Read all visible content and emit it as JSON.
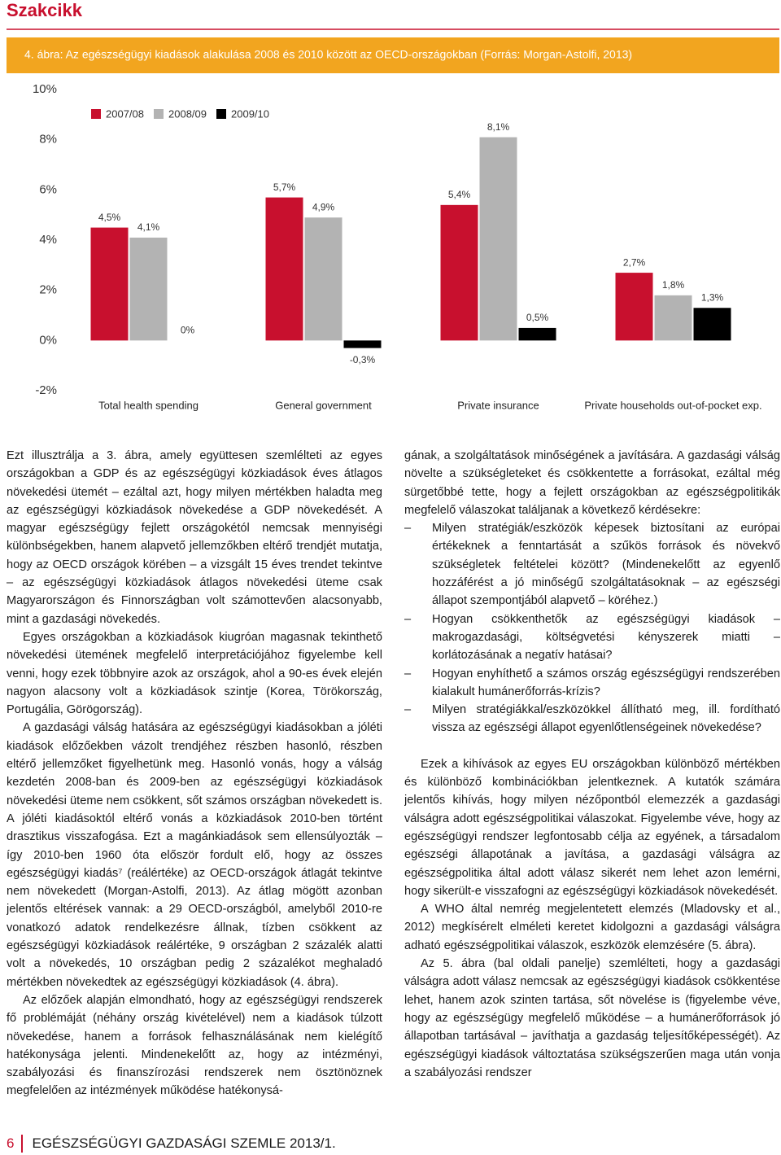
{
  "header": {
    "section": "Szakcikk"
  },
  "chart_data": {
    "type": "bar",
    "title": "4. ábra: Az egészségügyi kiadások alakulása 2008 és 2010 között az OECD-országokban (Forrás: Morgan-Astolfi, 2013)",
    "categories": [
      "Total health spending",
      "General government",
      "Private insurance",
      "Private households out-of-pocket exp."
    ],
    "series": [
      {
        "name": "2007/08",
        "color": "#c8102e",
        "values": [
          4.5,
          5.7,
          5.4,
          2.7
        ],
        "value_labels": [
          "4,5%",
          "5,7%",
          "5,4%",
          "2,7%"
        ]
      },
      {
        "name": "2008/09",
        "color": "#b3b3b3",
        "values": [
          4.1,
          4.9,
          8.1,
          1.8
        ],
        "value_labels": [
          "4,1%",
          "4,9%",
          "8,1%",
          "1,8%"
        ]
      },
      {
        "name": "2009/10",
        "color": "#000000",
        "values": [
          0,
          -0.3,
          0.5,
          1.3
        ],
        "value_labels": [
          "0%",
          "-0,3%",
          "0,5%",
          "1,3%"
        ]
      }
    ],
    "ylim": [
      -2,
      10
    ],
    "yticks": [
      {
        "value": -2,
        "label": "-2%"
      },
      {
        "value": 0,
        "label": "0%"
      },
      {
        "value": 2,
        "label": "2%"
      },
      {
        "value": 4,
        "label": "4%"
      },
      {
        "value": 6,
        "label": "6%"
      },
      {
        "value": 8,
        "label": "8%"
      },
      {
        "value": 10,
        "label": "10%"
      }
    ],
    "grid": false,
    "legend": "top-left"
  },
  "left_column": {
    "paragraphs": [
      "Ezt illusztrálja a 3. ábra, amely együttesen szemlélteti az egyes országokban a GDP és az egészségügyi közkiadások éves átlagos növekedési ütemét – ezáltal azt, hogy milyen mértékben haladta meg az egészségügyi közkiadások növekedése a GDP növekedését. A magyar egészségügy fejlett országokétól nemcsak mennyiségi különbségekben, hanem alapvető jellemzőkben eltérő trendjét mutatja, hogy az OECD országok körében – a vizsgált 15 éves trendet tekintve – az egészségügyi közkiadások átlagos növekedési üteme csak Magyarországon és Finnországban volt számottevően alacsonyabb, mint a gazdasági növekedés.",
      "Egyes országokban a közkiadások kiugróan magasnak tekinthető növekedési ütemének megfelelő interpretációjához figyelembe kell venni, hogy ezek többnyire azok az országok, ahol a 90-es évek elején nagyon alacsony volt a közkiadások szintje (Korea, Törökország, Portugália, Görögország).",
      "A gazdasági válság hatására az egészségügyi kiadásokban a jóléti kiadások előzőekben vázolt trendjéhez részben hasonló, részben eltérő jellemzőket figyelhetünk meg. Hasonló vonás, hogy a válság kezdetén 2008-ban és 2009-ben az egészségügyi közkiadások növekedési üteme nem csökkent, sőt számos országban növekedett is. A jóléti kiadásoktól eltérő vonás a közkiadások 2010-ben történt drasztikus visszafogása. Ezt a magánkiadások sem ellensúlyozták – így 2010-ben 1960 óta először fordult elő, hogy az összes egészségügyi kiadás⁷ (reálértéke) az OECD-országok átlagát tekintve nem növekedett (Morgan-Astolfi, 2013). Az átlag mögött azonban jelentős eltérések vannak: a 29 OECD-országból, amelyből 2010-re vonatkozó adatok rendelkezésre állnak, tízben csökkent az egészségügyi közkiadások reálértéke, 9 országban 2 százalék alatti volt a növekedés, 10 országban pedig 2 százalékot meghaladó mértékben növekedtek az egészségügyi közkiadások (4. ábra).",
      "Az előzőek alapján elmondható, hogy az egészségügyi rendszerek fő problémáját (néhány ország kivételével) nem a kiadások túlzott növekedése, hanem a források felhasználásának nem kielégítő hatékonysága jelenti. Mindenekelőtt az, hogy az intézményi, szabályozási és finanszírozási rendszerek nem ösztönöznek megfelelően az intézmények működése hatékonysá-"
    ]
  },
  "right_column": {
    "intro": "gának, a szolgáltatások minőségének a javítására. A gazdasági válság növelte a szükségleteket és csökkentette a forrásokat, ezáltal még sürgetőbbé tette, hogy a fejlett országokban az egészségpolitikák megfelelő válaszokat találjanak a következő kérdésekre:",
    "list": [
      "Milyen stratégiák/eszközök képesek biztosítani az európai értékeknek a fenntartását a szűkös források és növekvő szükségletek feltételei között? (Mindenekelőtt az egyenlő hozzáférést a jó minőségű szolgáltatásoknak – az egészségi állapot szempontjából alapvető – köréhez.)",
      "Hogyan csökkenthetők az egészségügyi kiadások – makrogazdasági, költségvetési kényszerek miatti – korlátozásának a negatív hatásai?",
      "Hogyan enyhíthető a számos ország egészségügyi rendszerében kialakult humánerőforrás-krízis?",
      "Milyen stratégiákkal/eszközökkel állítható meg, ill. fordítható vissza az egészségi állapot egyenlőtlenségeinek növekedése?"
    ],
    "paragraphs": [
      "Ezek a kihívások az egyes EU országokban különböző mértékben és különböző kombinációkban jelentkeznek. A kutatók számára jelentős kihívás, hogy milyen nézőpontból elemezzék a gazdasági válságra adott egészségpolitikai válaszokat. Figyelembe véve, hogy az egészségügyi rendszer legfontosabb célja az egyének, a társadalom egészségi állapotának a javítása, a gazdasági válságra az egészségpolitika által adott válasz sikerét nem lehet azon lemérni, hogy sikerült-e visszafogni az egészségügyi közkiadások növekedését.",
      "A WHO által nemrég megjelentetett elemzés (Mladovsky et al., 2012) megkísérelt elméleti keretet kidolgozni a gazdasági válságra adható egészségpolitikai válaszok, eszközök elemzésére (5. ábra).",
      "Az 5. ábra (bal oldali panelje) szemlélteti, hogy a gazdasági válságra adott válasz nemcsak az egészségügyi kiadások csökkentése lehet, hanem azok szinten tartása, sőt növelése is (figyelembe véve, hogy az egészségügy megfelelő működése – a humánerőforrások jó állapotban tartásával – javíthatja a gazdaság teljesítőképességét). Az egészségügyi kiadások változtatása szükségszerűen maga után vonja a szabályozási rendszer"
    ]
  },
  "footer": {
    "page": "6",
    "journal": "EGÉSZSÉGÜGYI GAZDASÁGI SZEMLE 2013/1."
  }
}
